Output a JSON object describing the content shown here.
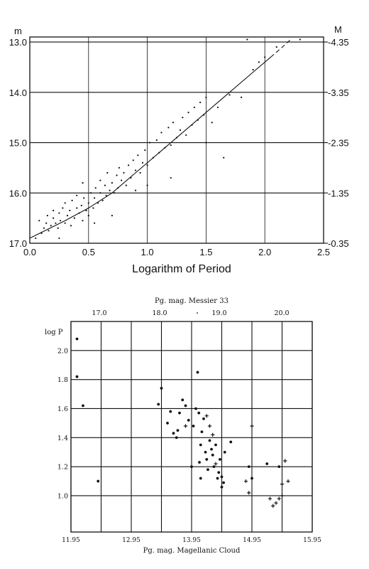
{
  "chart_data": [
    {
      "type": "scatter",
      "title": "",
      "xlabel": "Logarithm of Period",
      "ylabel_left": "m",
      "ylabel_right": "M",
      "xlim": [
        0.0,
        2.5
      ],
      "ylim": [
        17.0,
        12.9
      ],
      "x_ticks": [
        "0.0",
        "0.5",
        "1.0",
        "1.5",
        "2.0",
        "2.5"
      ],
      "y_ticks_left": [
        "13.0",
        "14.0",
        "15.0",
        "16.0",
        "17.0"
      ],
      "y_ticks_right": [
        "-4.35",
        "-3.35",
        "-2.35",
        "-1.35",
        "-0.35"
      ],
      "grid": true,
      "trend_solid": [
        [
          0.0,
          16.9
        ],
        [
          0.3,
          16.55
        ],
        [
          0.5,
          16.3
        ],
        [
          0.7,
          16.0
        ],
        [
          0.9,
          15.6
        ],
        [
          1.1,
          15.2
        ],
        [
          1.3,
          14.8
        ],
        [
          1.5,
          14.4
        ],
        [
          1.7,
          14.0
        ],
        [
          1.9,
          13.6
        ],
        [
          2.05,
          13.3
        ]
      ],
      "trend_dashed": [
        [
          2.05,
          13.3
        ],
        [
          2.15,
          13.1
        ],
        [
          2.22,
          12.95
        ]
      ],
      "series": [
        {
          "points": [
            [
              0.08,
              16.55
            ],
            [
              0.1,
              16.8
            ],
            [
              0.12,
              16.7
            ],
            [
              0.14,
              16.6
            ],
            [
              0.15,
              16.45
            ],
            [
              0.16,
              16.75
            ],
            [
              0.18,
              16.65
            ],
            [
              0.2,
              16.5
            ],
            [
              0.2,
              16.35
            ],
            [
              0.22,
              16.6
            ],
            [
              0.24,
              16.7
            ],
            [
              0.25,
              16.4
            ],
            [
              0.26,
              16.55
            ],
            [
              0.28,
              16.3
            ],
            [
              0.3,
              16.6
            ],
            [
              0.3,
              16.2
            ],
            [
              0.32,
              16.45
            ],
            [
              0.34,
              16.35
            ],
            [
              0.35,
              16.65
            ],
            [
              0.36,
              16.15
            ],
            [
              0.38,
              16.5
            ],
            [
              0.4,
              16.3
            ],
            [
              0.4,
              16.05
            ],
            [
              0.42,
              16.4
            ],
            [
              0.44,
              16.25
            ],
            [
              0.45,
              16.55
            ],
            [
              0.46,
              16.1
            ],
            [
              0.48,
              16.35
            ],
            [
              0.5,
              16.2
            ],
            [
              0.5,
              16.45
            ],
            [
              0.52,
              16.0
            ],
            [
              0.54,
              16.3
            ],
            [
              0.55,
              16.1
            ],
            [
              0.56,
              15.9
            ],
            [
              0.58,
              16.2
            ],
            [
              0.6,
              16.0
            ],
            [
              0.6,
              15.75
            ],
            [
              0.62,
              16.15
            ],
            [
              0.64,
              15.85
            ],
            [
              0.65,
              16.05
            ],
            [
              0.66,
              15.6
            ],
            [
              0.68,
              15.95
            ],
            [
              0.7,
              15.8
            ],
            [
              0.72,
              16.0
            ],
            [
              0.74,
              15.65
            ],
            [
              0.75,
              15.9
            ],
            [
              0.76,
              15.5
            ],
            [
              0.78,
              15.75
            ],
            [
              0.8,
              15.6
            ],
            [
              0.82,
              15.85
            ],
            [
              0.84,
              15.45
            ],
            [
              0.86,
              15.7
            ],
            [
              0.88,
              15.35
            ],
            [
              0.9,
              15.55
            ],
            [
              0.92,
              15.25
            ],
            [
              0.94,
              15.6
            ],
            [
              0.96,
              15.4
            ],
            [
              0.98,
              15.15
            ],
            [
              1.0,
              15.45
            ],
            [
              1.02,
              15.0
            ],
            [
              1.05,
              15.3
            ],
            [
              1.08,
              14.95
            ],
            [
              1.1,
              15.2
            ],
            [
              1.12,
              14.8
            ],
            [
              1.15,
              15.1
            ],
            [
              1.18,
              14.7
            ],
            [
              1.2,
              15.05
            ],
            [
              1.22,
              14.6
            ],
            [
              1.25,
              14.9
            ],
            [
              1.28,
              14.75
            ],
            [
              1.3,
              14.5
            ],
            [
              1.33,
              14.85
            ],
            [
              1.35,
              14.4
            ],
            [
              1.38,
              14.65
            ],
            [
              1.4,
              14.3
            ],
            [
              1.43,
              14.55
            ],
            [
              1.45,
              14.2
            ],
            [
              1.48,
              14.45
            ],
            [
              1.5,
              14.1
            ],
            [
              1.55,
              14.6
            ],
            [
              1.6,
              14.3
            ],
            [
              1.65,
              15.3
            ],
            [
              1.7,
              14.05
            ],
            [
              1.8,
              14.1
            ],
            [
              1.9,
              13.55
            ],
            [
              1.95,
              13.4
            ],
            [
              2.0,
              13.3
            ],
            [
              2.1,
              13.1
            ],
            [
              2.3,
              12.95
            ],
            [
              0.05,
              16.9
            ],
            [
              0.9,
              15.95
            ],
            [
              1.2,
              15.7
            ],
            [
              0.45,
              15.8
            ],
            [
              0.7,
              16.45
            ],
            [
              0.25,
              16.9
            ],
            [
              1.5,
              15.0
            ],
            [
              1.85,
              12.95
            ],
            [
              0.55,
              16.6
            ],
            [
              1.0,
              15.85
            ]
          ]
        }
      ]
    },
    {
      "type": "scatter",
      "title": "",
      "top_axis_label": "Pg. mag. Messier 33",
      "xlabel": "Pg. mag. Magellanic Cloud",
      "ylabel": "log P",
      "xlim": [
        11.95,
        15.95
      ],
      "ylim": [
        0.75,
        2.2
      ],
      "x_ticks": [
        "11.95",
        "12.95",
        "13.95",
        "14.95",
        "15.95"
      ],
      "top_ticks": [
        "17.0",
        "18.0",
        "19.0",
        "20.0"
      ],
      "y_ticks": [
        "2.0",
        "1.8",
        "1.6",
        "1.4",
        "1.2",
        "1.0"
      ],
      "grid": true,
      "series": [
        {
          "marker": "dot",
          "points": [
            [
              12.05,
              2.08
            ],
            [
              12.05,
              1.82
            ],
            [
              12.15,
              1.62
            ],
            [
              12.4,
              1.1
            ],
            [
              13.4,
              1.63
            ],
            [
              13.45,
              1.74
            ],
            [
              13.55,
              1.5
            ],
            [
              13.6,
              1.58
            ],
            [
              13.65,
              1.43
            ],
            [
              13.7,
              1.4
            ],
            [
              13.72,
              1.45
            ],
            [
              13.75,
              1.57
            ],
            [
              13.8,
              1.66
            ],
            [
              13.85,
              1.62
            ],
            [
              13.9,
              1.52
            ],
            [
              13.95,
              1.2
            ],
            [
              13.98,
              1.48
            ],
            [
              14.02,
              1.6
            ],
            [
              14.05,
              1.85
            ],
            [
              14.07,
              1.57
            ],
            [
              14.1,
              1.35
            ],
            [
              14.12,
              1.44
            ],
            [
              14.15,
              1.53
            ],
            [
              14.18,
              1.3
            ],
            [
              14.2,
              1.25
            ],
            [
              14.22,
              1.18
            ],
            [
              14.25,
              1.38
            ],
            [
              14.28,
              1.32
            ],
            [
              14.3,
              1.28
            ],
            [
              14.32,
              1.2
            ],
            [
              14.35,
              1.35
            ],
            [
              14.38,
              1.12
            ],
            [
              14.4,
              1.16
            ],
            [
              14.42,
              1.25
            ],
            [
              14.45,
              1.13
            ],
            [
              14.48,
              1.09
            ],
            [
              14.5,
              1.3
            ],
            [
              14.1,
              1.12
            ],
            [
              14.6,
              1.37
            ],
            [
              14.9,
              1.2
            ],
            [
              14.95,
              1.12
            ],
            [
              15.2,
              1.22
            ],
            [
              15.4,
              1.2
            ],
            [
              14.08,
              1.23
            ],
            [
              14.45,
              1.06
            ]
          ]
        },
        {
          "marker": "plus",
          "points": [
            [
              13.85,
              1.48
            ],
            [
              14.2,
              1.55
            ],
            [
              14.25,
              1.48
            ],
            [
              14.3,
              1.42
            ],
            [
              14.35,
              1.22
            ],
            [
              14.95,
              1.48
            ],
            [
              14.85,
              1.1
            ],
            [
              15.25,
              0.98
            ],
            [
              15.35,
              0.95
            ],
            [
              15.4,
              0.98
            ],
            [
              15.45,
              1.0
            ],
            [
              15.5,
              1.24
            ],
            [
              15.55,
              1.1
            ],
            [
              15.45,
              1.08
            ],
            [
              15.3,
              0.93
            ],
            [
              14.9,
              1.02
            ]
          ]
        }
      ]
    }
  ]
}
